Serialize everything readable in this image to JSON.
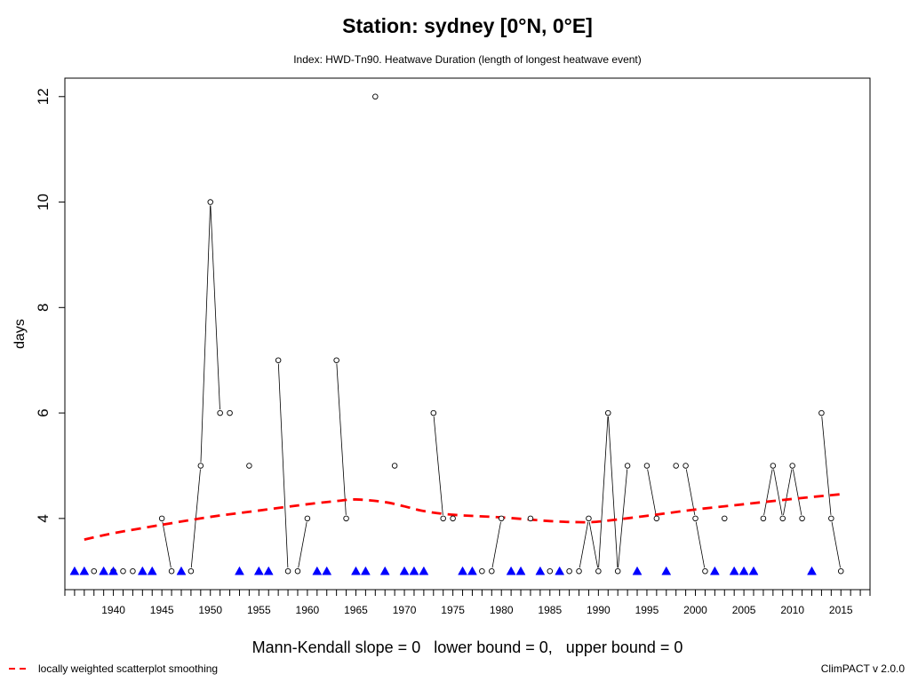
{
  "chart_data": {
    "type": "line",
    "title": "Station: sydney [0°N, 0°E]",
    "subtitle": "Index: HWD-Tn90. Heatwave Duration (length of longest heatwave event)",
    "xlabel": "",
    "ylabel": "days",
    "xlim": [
      1935,
      2018
    ],
    "ylim": [
      2.65,
      12.35
    ],
    "x_ticks": [
      1940,
      1945,
      1950,
      1955,
      1960,
      1965,
      1970,
      1975,
      1980,
      1985,
      1990,
      1995,
      2000,
      2005,
      2010,
      2015
    ],
    "y_ticks": [
      4,
      6,
      8,
      10,
      12
    ],
    "grid": false,
    "legend_position": "bottom-left",
    "series": [
      {
        "name": "",
        "marker": "open-circle-with-line",
        "x": [
          1938,
          1940,
          1941,
          1942,
          1945,
          1946,
          1948,
          1949,
          1950,
          1951,
          1952,
          1954,
          1957,
          1958,
          1959,
          1960,
          1963,
          1964,
          1967,
          1969,
          1973,
          1974,
          1975,
          1978,
          1979,
          1980,
          1983,
          1985,
          1987,
          1988,
          1989,
          1990,
          1991,
          1992,
          1993,
          1995,
          1996,
          1998,
          1999,
          2000,
          2001,
          2003,
          2007,
          2008,
          2009,
          2010,
          2011,
          2013,
          2014,
          2015
        ],
        "y": [
          3,
          3,
          3,
          3,
          4,
          3,
          3,
          5,
          10,
          6,
          6,
          5,
          7,
          3,
          3,
          4,
          7,
          4,
          12,
          5,
          6,
          4,
          4,
          3,
          3,
          4,
          4,
          3,
          3,
          3,
          4,
          3,
          6,
          3,
          5,
          5,
          4,
          5,
          5,
          4,
          3,
          4,
          4,
          5,
          4,
          5,
          4,
          6,
          4,
          3
        ]
      },
      {
        "name": "",
        "marker": "filled-triangle",
        "color": "#0000ff",
        "x": [
          1936,
          1937,
          1939,
          1940,
          1943,
          1944,
          1947,
          1953,
          1955,
          1956,
          1961,
          1962,
          1965,
          1966,
          1968,
          1970,
          1971,
          1972,
          1976,
          1977,
          1981,
          1982,
          1984,
          1986,
          1994,
          1997,
          2002,
          2004,
          2005,
          2006,
          2012
        ],
        "y": [
          3,
          3,
          3,
          3,
          3,
          3,
          3,
          3,
          3,
          3,
          3,
          3,
          3,
          3,
          3,
          3,
          3,
          3,
          3,
          3,
          3,
          3,
          3,
          3,
          3,
          3,
          3,
          3,
          3,
          3,
          3
        ]
      },
      {
        "name": "locally weighted scatterplot smoothing",
        "style": "dashed",
        "color": "#ff0000",
        "x": [
          1937,
          1940,
          1945,
          1950,
          1955,
          1960,
          1963,
          1965,
          1968,
          1970,
          1972,
          1975,
          1980,
          1985,
          1988,
          1990,
          1995,
          2000,
          2005,
          2010,
          2015
        ],
        "y": [
          3.6,
          3.72,
          3.88,
          4.03,
          4.15,
          4.27,
          4.33,
          4.36,
          4.31,
          4.23,
          4.14,
          4.07,
          4.02,
          3.95,
          3.93,
          3.94,
          4.05,
          4.17,
          4.27,
          4.37,
          4.46
        ]
      }
    ],
    "annotations": {
      "mann_kendall": "Mann-Kendall slope = 0   lower bound = 0,   upper bound = 0",
      "legend_label": "locally weighted scatterplot smoothing",
      "version": "ClimPACT v 2.0.0"
    }
  }
}
